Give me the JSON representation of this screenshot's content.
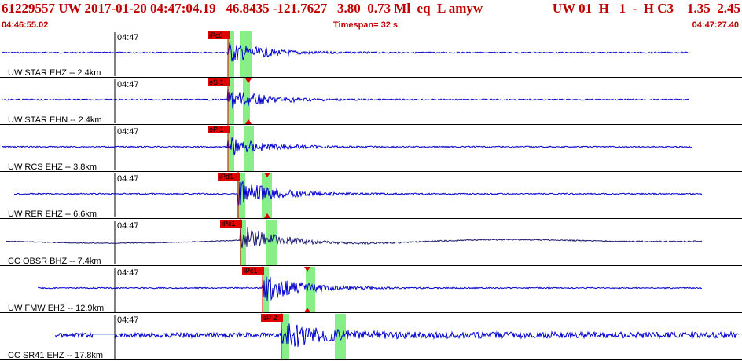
{
  "header": {
    "title": "61229557 UW 2017-01-20 04:47:04.19   46.8435 -121.7627   3.80  0.73 Ml  eq  L amyw",
    "codes": "UW 01  H   1  -  H C3    1.35  2.45",
    "start_time": "04:46:55.02",
    "timespan": "Timespan=  32 s",
    "end_time": "04:47:27.40"
  },
  "colors": {
    "trace": "#0000cc",
    "trace_dark": "#1a1a6e",
    "pick_box": "#e00000",
    "pick_window": "#88ee88",
    "header_text": "#c00000"
  },
  "time_tick_label": "04:47",
  "channels": [
    {
      "label": "UW STAR EHZ -- 2.4km",
      "pick": "iPc0",
      "dark": false
    },
    {
      "label": "UW STAR EHN -- 2.4km",
      "pick": "eS 1",
      "dark": false
    },
    {
      "label": "UW RCS EHZ -- 3.8km",
      "pick": "eP 1",
      "dark": false
    },
    {
      "label": "UW RER EHZ -- 6.6km",
      "pick": "iPd1",
      "dark": false
    },
    {
      "label": "CC OBSR BHZ -- 7.4km",
      "pick": "iPc1",
      "dark": true
    },
    {
      "label": "UW FMW EHZ -- 12.9km",
      "pick": "iPc1",
      "dark": false
    },
    {
      "label": "CC SR41 EHZ -- 17.8km",
      "pick": "eP 2",
      "dark": false
    }
  ]
}
